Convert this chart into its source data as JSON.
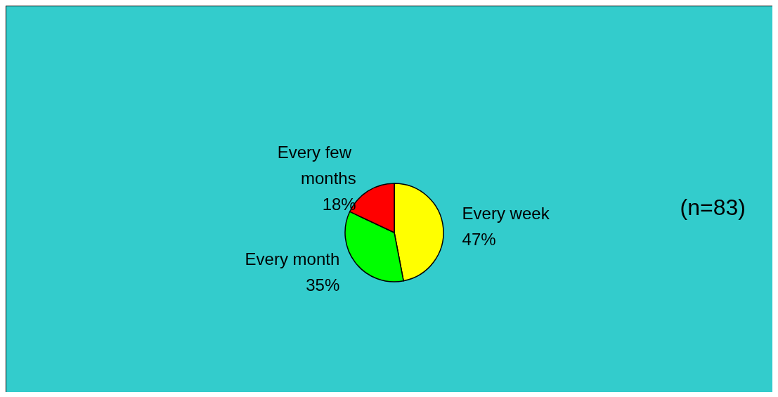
{
  "chart_data": {
    "type": "pie",
    "categories": [
      "Every week",
      "Every month",
      "Every few months"
    ],
    "values": [
      47,
      35,
      18
    ],
    "colors": [
      "#ffff00",
      "#00ff00",
      "#ff0000"
    ],
    "value_labels": [
      "47%",
      "35%",
      "18%"
    ],
    "annotations": [
      "(n=83)"
    ]
  }
}
